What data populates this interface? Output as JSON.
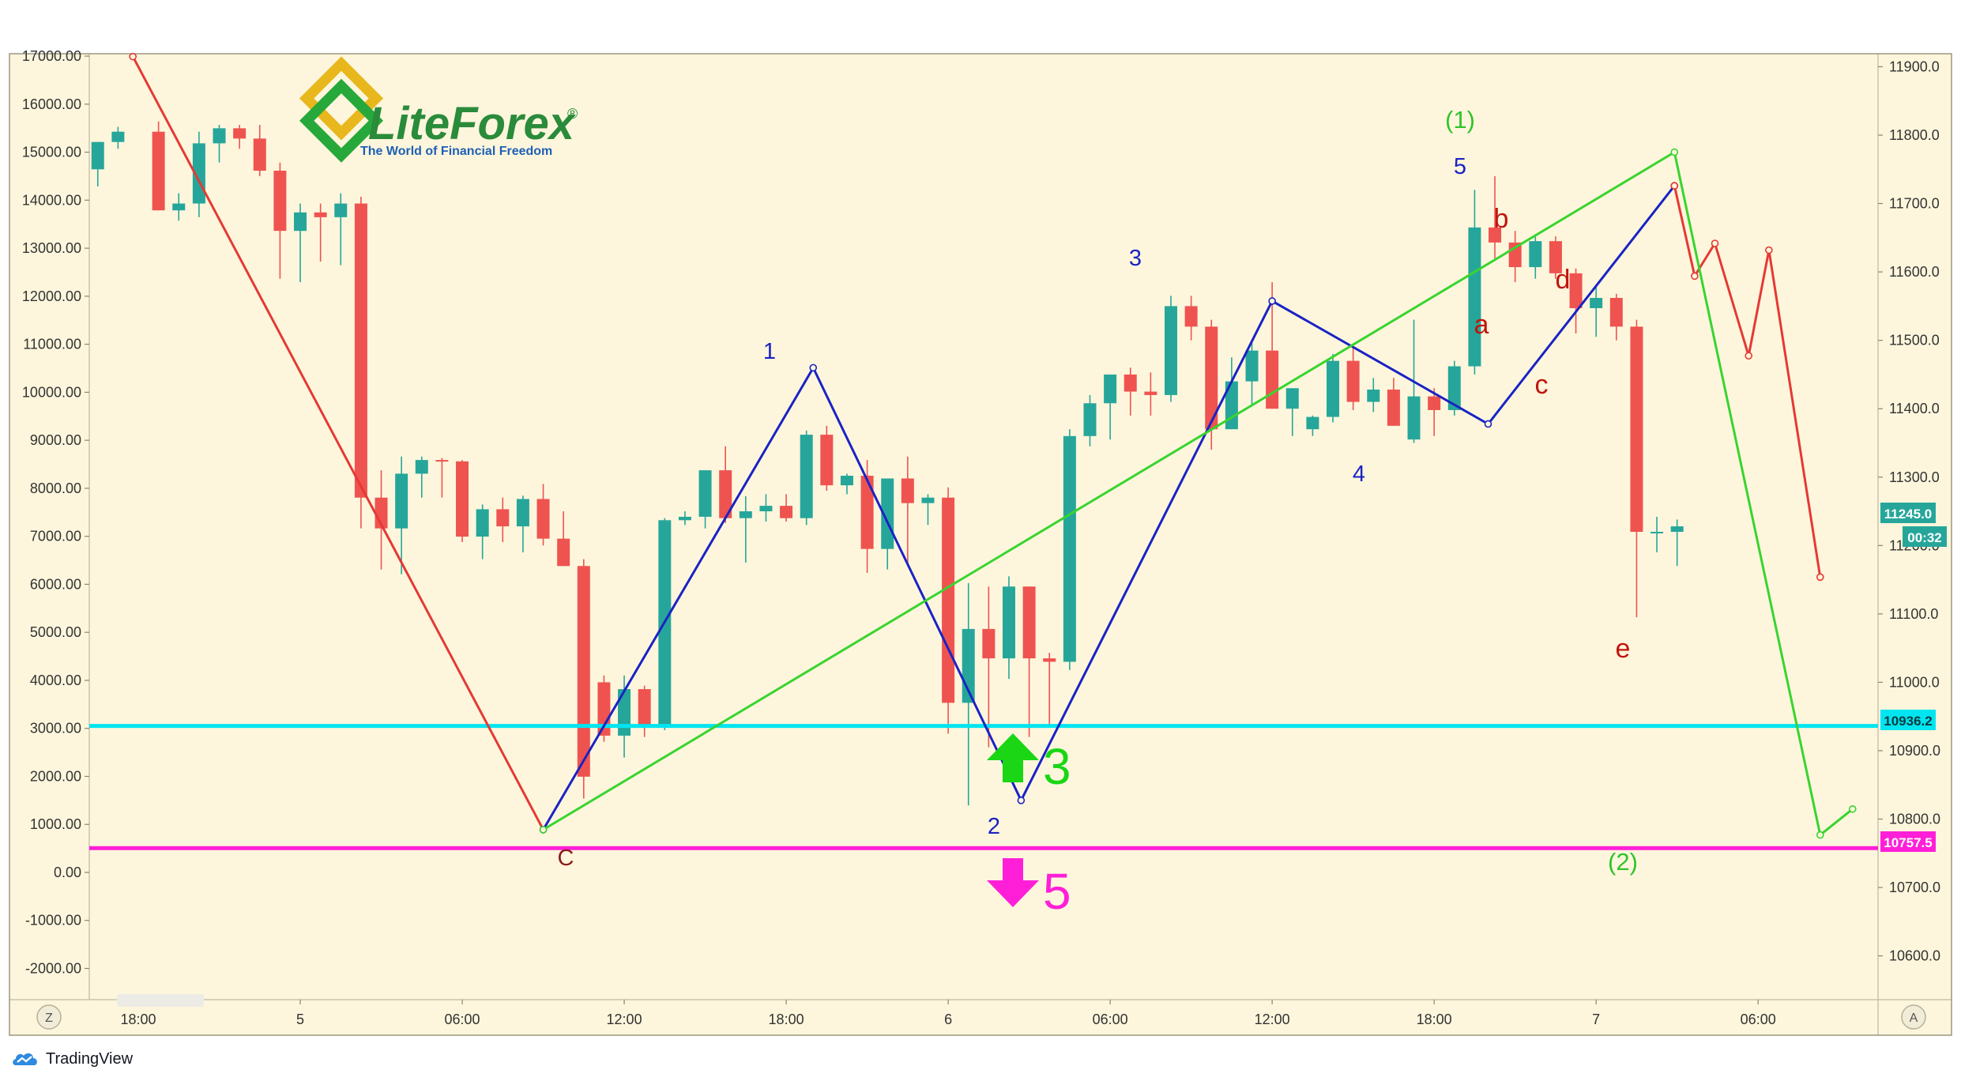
{
  "chart_data": {
    "type": "candlestick",
    "left_axis": {
      "ticks": [
        "17000.00",
        "16000.00",
        "15000.00",
        "14000.00",
        "13000.00",
        "12000.00",
        "11000.00",
        "10000.00",
        "9000.00",
        "8000.00",
        "7000.00",
        "6000.00",
        "5000.00",
        "4000.00",
        "3000.00",
        "2000.00",
        "1000.00",
        "0.00",
        "-1000.00",
        "-2000.00"
      ],
      "range": [
        -2650,
        17050
      ]
    },
    "right_axis": {
      "ticks": [
        "11900.0",
        "11800.0",
        "11700.0",
        "11600.0",
        "11500.0",
        "11400.0",
        "11300.0",
        "11200.0",
        "11100.0",
        "11000.0",
        "10900.0",
        "10800.0",
        "10700.0",
        "10600.0"
      ],
      "range": [
        10536,
        11919
      ]
    },
    "x_axis": {
      "ticks": [
        "18:00",
        "5",
        "06:00",
        "12:00",
        "18:00",
        "6",
        "06:00",
        "12:00",
        "18:00",
        "7",
        "06:00"
      ],
      "unit": "hours since 18:00 (day 4)",
      "tick_hours": [
        0,
        6,
        12,
        18,
        24,
        30,
        36,
        42,
        48,
        54,
        60
      ]
    },
    "price_labels": {
      "current": "11245.0",
      "countdown": "00:32",
      "level_cyan": "10936.2",
      "level_magenta": "10757.5"
    },
    "horizontal_levels": [
      {
        "name": "support-cyan",
        "price": 10936.2,
        "color": "#00e5f0"
      },
      {
        "name": "support-magenta",
        "price": 10757.5,
        "color": "#ff1fd8"
      }
    ],
    "candles": [
      {
        "t": -1.5,
        "o": 11750,
        "h": 11780,
        "l": 11725,
        "c": 11790
      },
      {
        "t": -0.75,
        "o": 11790,
        "h": 11812,
        "l": 11780,
        "c": 11805
      },
      {
        "t": 0.75,
        "o": 11805,
        "h": 11820,
        "l": 11690,
        "c": 11690
      },
      {
        "t": 1.5,
        "o": 11690,
        "h": 11715,
        "l": 11675,
        "c": 11700
      },
      {
        "t": 2.25,
        "o": 11700,
        "h": 11805,
        "l": 11680,
        "c": 11788
      },
      {
        "t": 3.0,
        "o": 11788,
        "h": 11815,
        "l": 11760,
        "c": 11810
      },
      {
        "t": 3.75,
        "o": 11810,
        "h": 11815,
        "l": 11780,
        "c": 11795
      },
      {
        "t": 4.5,
        "o": 11795,
        "h": 11815,
        "l": 11740,
        "c": 11748
      },
      {
        "t": 5.25,
        "o": 11748,
        "h": 11760,
        "l": 11590,
        "c": 11660
      },
      {
        "t": 6.0,
        "o": 11660,
        "h": 11700,
        "l": 11585,
        "c": 11687
      },
      {
        "t": 6.75,
        "o": 11687,
        "h": 11700,
        "l": 11615,
        "c": 11680
      },
      {
        "t": 7.5,
        "o": 11680,
        "h": 11715,
        "l": 11610,
        "c": 11700
      },
      {
        "t": 8.25,
        "o": 11700,
        "h": 11710,
        "l": 11225,
        "c": 11270
      },
      {
        "t": 9.0,
        "o": 11270,
        "h": 11310,
        "l": 11165,
        "c": 11225
      },
      {
        "t": 9.75,
        "o": 11225,
        "h": 11330,
        "l": 11158,
        "c": 11305
      },
      {
        "t": 10.5,
        "o": 11305,
        "h": 11330,
        "l": 11270,
        "c": 11325
      },
      {
        "t": 11.25,
        "o": 11325,
        "h": 11328,
        "l": 11270,
        "c": 11323
      },
      {
        "t": 12.0,
        "o": 11323,
        "h": 11325,
        "l": 11205,
        "c": 11213
      },
      {
        "t": 12.75,
        "o": 11213,
        "h": 11260,
        "l": 11180,
        "c": 11253
      },
      {
        "t": 13.5,
        "o": 11253,
        "h": 11270,
        "l": 11205,
        "c": 11228
      },
      {
        "t": 14.25,
        "o": 11228,
        "h": 11273,
        "l": 11190,
        "c": 11268
      },
      {
        "t": 15.0,
        "o": 11268,
        "h": 11290,
        "l": 11200,
        "c": 11210
      },
      {
        "t": 15.75,
        "o": 11210,
        "h": 11250,
        "l": 11185,
        "c": 11170
      },
      {
        "t": 16.5,
        "o": 11170,
        "h": 11180,
        "l": 10830,
        "c": 10862
      },
      {
        "t": 17.25,
        "o": 11000,
        "h": 11010,
        "l": 10913,
        "c": 10922
      },
      {
        "t": 18.0,
        "o": 10922,
        "h": 11010,
        "l": 10890,
        "c": 10990
      },
      {
        "t": 18.75,
        "o": 10990,
        "h": 10995,
        "l": 10920,
        "c": 10935
      },
      {
        "t": 19.5,
        "o": 10935,
        "h": 11240,
        "l": 10930,
        "c": 11237
      },
      {
        "t": 20.25,
        "o": 11237,
        "h": 11250,
        "l": 11230,
        "c": 11242
      },
      {
        "t": 21.0,
        "o": 11242,
        "h": 11310,
        "l": 11225,
        "c": 11310
      },
      {
        "t": 21.75,
        "o": 11310,
        "h": 11345,
        "l": 11233,
        "c": 11240
      },
      {
        "t": 22.5,
        "o": 11240,
        "h": 11272,
        "l": 11175,
        "c": 11250
      },
      {
        "t": 23.25,
        "o": 11250,
        "h": 11275,
        "l": 11235,
        "c": 11258
      },
      {
        "t": 24.0,
        "o": 11258,
        "h": 11275,
        "l": 11235,
        "c": 11240
      },
      {
        "t": 24.75,
        "o": 11240,
        "h": 11368,
        "l": 11230,
        "c": 11362
      },
      {
        "t": 25.5,
        "o": 11362,
        "h": 11375,
        "l": 11280,
        "c": 11288
      },
      {
        "t": 26.25,
        "o": 11288,
        "h": 11305,
        "l": 11275,
        "c": 11302
      },
      {
        "t": 27.0,
        "o": 11302,
        "h": 11325,
        "l": 11160,
        "c": 11195
      },
      {
        "t": 27.75,
        "o": 11195,
        "h": 11290,
        "l": 11165,
        "c": 11298
      },
      {
        "t": 28.5,
        "o": 11298,
        "h": 11330,
        "l": 11170,
        "c": 11262
      },
      {
        "t": 29.25,
        "o": 11262,
        "h": 11275,
        "l": 11230,
        "c": 11270
      },
      {
        "t": 30.0,
        "o": 11270,
        "h": 11285,
        "l": 10925,
        "c": 10970
      },
      {
        "t": 30.75,
        "o": 10970,
        "h": 11145,
        "l": 10820,
        "c": 11078
      },
      {
        "t": 31.5,
        "o": 11078,
        "h": 11140,
        "l": 10905,
        "c": 11035
      },
      {
        "t": 32.25,
        "o": 11035,
        "h": 11155,
        "l": 11005,
        "c": 11140
      },
      {
        "t": 33.0,
        "o": 11140,
        "h": 11140,
        "l": 10920,
        "c": 11035
      },
      {
        "t": 33.75,
        "o": 11035,
        "h": 11043,
        "l": 10935,
        "c": 11030
      },
      {
        "t": 34.5,
        "o": 11030,
        "h": 11370,
        "l": 11018,
        "c": 11360
      },
      {
        "t": 35.25,
        "o": 11360,
        "h": 11420,
        "l": 11345,
        "c": 11408
      },
      {
        "t": 36.0,
        "o": 11408,
        "h": 11445,
        "l": 11355,
        "c": 11450
      },
      {
        "t": 36.75,
        "o": 11450,
        "h": 11460,
        "l": 11390,
        "c": 11425
      },
      {
        "t": 37.5,
        "o": 11425,
        "h": 11453,
        "l": 11390,
        "c": 11420
      },
      {
        "t": 38.25,
        "o": 11420,
        "h": 11565,
        "l": 11410,
        "c": 11550
      },
      {
        "t": 39.0,
        "o": 11550,
        "h": 11565,
        "l": 11500,
        "c": 11520
      },
      {
        "t": 39.75,
        "o": 11520,
        "h": 11530,
        "l": 11340,
        "c": 11370
      },
      {
        "t": 40.5,
        "o": 11370,
        "h": 11475,
        "l": 11370,
        "c": 11440
      },
      {
        "t": 41.25,
        "o": 11440,
        "h": 11500,
        "l": 11405,
        "c": 11485
      },
      {
        "t": 42.0,
        "o": 11485,
        "h": 11585,
        "l": 11410,
        "c": 11400
      },
      {
        "t": 42.75,
        "o": 11400,
        "h": 11430,
        "l": 11360,
        "c": 11430
      },
      {
        "t": 43.5,
        "o": 11370,
        "h": 11390,
        "l": 11360,
        "c": 11388
      },
      {
        "t": 44.25,
        "o": 11388,
        "h": 11480,
        "l": 11380,
        "c": 11470
      },
      {
        "t": 45.0,
        "o": 11470,
        "h": 11488,
        "l": 11398,
        "c": 11410
      },
      {
        "t": 45.75,
        "o": 11410,
        "h": 11445,
        "l": 11395,
        "c": 11428
      },
      {
        "t": 46.5,
        "o": 11428,
        "h": 11445,
        "l": 11375,
        "c": 11375
      },
      {
        "t": 47.25,
        "o": 11355,
        "h": 11530,
        "l": 11350,
        "c": 11418
      },
      {
        "t": 48.0,
        "o": 11418,
        "h": 11430,
        "l": 11360,
        "c": 11398
      },
      {
        "t": 48.75,
        "o": 11398,
        "h": 11470,
        "l": 11390,
        "c": 11462
      },
      {
        "t": 49.5,
        "o": 11462,
        "h": 11720,
        "l": 11450,
        "c": 11665
      },
      {
        "t": 50.25,
        "o": 11665,
        "h": 11740,
        "l": 11620,
        "c": 11643
      },
      {
        "t": 51.0,
        "o": 11643,
        "h": 11660,
        "l": 11585,
        "c": 11607
      },
      {
        "t": 51.75,
        "o": 11607,
        "h": 11655,
        "l": 11590,
        "c": 11645
      },
      {
        "t": 52.5,
        "o": 11645,
        "h": 11652,
        "l": 11590,
        "c": 11598
      },
      {
        "t": 53.25,
        "o": 11598,
        "h": 11605,
        "l": 11510,
        "c": 11547
      },
      {
        "t": 54.0,
        "o": 11547,
        "h": 11580,
        "l": 11505,
        "c": 11562
      },
      {
        "t": 54.75,
        "o": 11562,
        "h": 11568,
        "l": 11500,
        "c": 11520
      },
      {
        "t": 55.5,
        "o": 11520,
        "h": 11530,
        "l": 11095,
        "c": 11220
      },
      {
        "t": 56.25,
        "o": 11220,
        "h": 11242,
        "l": 11190,
        "c": 11220
      },
      {
        "t": 57.0,
        "o": 11220,
        "h": 11238,
        "l": 11170,
        "c": 11228
      }
    ],
    "wave_counts": [
      {
        "name": "abc-decline",
        "color": "#e53935",
        "points": [
          [
            -0.2,
            16990
          ],
          [
            15.0,
            890
          ]
        ]
      },
      {
        "name": "impulse-12345",
        "color": "#1a23c4",
        "points": [
          [
            15.0,
            890
          ],
          [
            25.0,
            10510
          ],
          [
            32.7,
            1500
          ],
          [
            42.0,
            11900
          ],
          [
            50.0,
            9340
          ],
          [
            56.9,
            14300
          ]
        ]
      },
      {
        "name": "corrective-abcde",
        "color": "#e53935",
        "points": [
          [
            56.9,
            14300
          ],
          [
            57.65,
            12420
          ],
          [
            58.4,
            13100
          ],
          [
            59.65,
            10760
          ],
          [
            60.4,
            12960
          ],
          [
            62.3,
            6150
          ]
        ]
      },
      {
        "name": "wave-1-2",
        "color": "#39d42f",
        "points": [
          [
            15.0,
            890
          ],
          [
            56.9,
            15000
          ],
          [
            62.3,
            780
          ],
          [
            63.5,
            1320
          ]
        ]
      }
    ],
    "labels": [
      {
        "text": "(1)",
        "color": "#2fc42a"
      },
      {
        "text": "5",
        "color": "#1a23c4"
      },
      {
        "text": "1",
        "color": "#1a23c4"
      },
      {
        "text": "3",
        "color": "#1a23c4"
      },
      {
        "text": "4",
        "color": "#1a23c4"
      },
      {
        "text": "2",
        "color": "#1a23c4"
      },
      {
        "text": "C",
        "color": "#8b1a1a"
      },
      {
        "text": "a",
        "color": "#c0150f"
      },
      {
        "text": "b",
        "color": "#c0150f"
      },
      {
        "text": "c",
        "color": "#c0150f"
      },
      {
        "text": "d",
        "color": "#c0150f"
      },
      {
        "text": "e",
        "color": "#c0150f"
      },
      {
        "text": "(2)",
        "color": "#2fc42a"
      }
    ],
    "annotations": [
      {
        "name": "up-arrow-3",
        "text": "3",
        "color": "#1ad615"
      },
      {
        "name": "down-arrow-5",
        "text": "5",
        "color": "#ff1fd8"
      }
    ],
    "axis_buttons": {
      "left": "Z",
      "right": "A"
    }
  },
  "logo": {
    "brand": "LiteForex",
    "registered": "®",
    "tagline": "The World of Financial Freedom"
  },
  "footer": {
    "brand": "TradingView"
  },
  "colors": {
    "background": "#fdf6dc",
    "up": "#26a69a",
    "down": "#ef5350",
    "grid": "#f2e8c0"
  }
}
